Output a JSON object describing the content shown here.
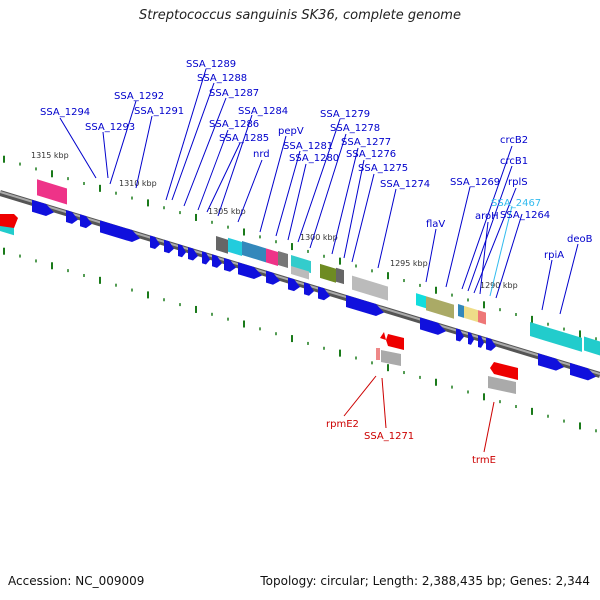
{
  "header": {
    "title": "Streptococcus sanguinis SK36, complete genome"
  },
  "footer": {
    "accession": "Accession: NC_009009",
    "summary": "Topology: circular; Length: 2,388,435 bp; Genes: 2,344"
  },
  "colors": {
    "forward_label": "#0000cc",
    "reverse_label": "#cc0000",
    "highlight_label": "#33bbee",
    "backbone": "#888888",
    "tick": "#1a7a1a",
    "forward_arrow": "#1010dd",
    "reverse_arrow": "#ee0000"
  },
  "ruler": [
    {
      "label": "1315 kbp"
    },
    {
      "label": "1310 kbp"
    },
    {
      "label": "1305 kbp"
    },
    {
      "label": "1300 kbp"
    },
    {
      "label": "1295 kbp"
    },
    {
      "label": "1290 kbp"
    }
  ],
  "forward_genes": [
    {
      "label": "SSA_1294"
    },
    {
      "label": "SSA_1293"
    },
    {
      "label": "SSA_1292"
    },
    {
      "label": "SSA_1291"
    },
    {
      "label": "SSA_1289"
    },
    {
      "label": "SSA_1288"
    },
    {
      "label": "SSA_1287"
    },
    {
      "label": "SSA_1286"
    },
    {
      "label": "SSA_1285"
    },
    {
      "label": "SSA_1284"
    },
    {
      "label": "nrd"
    },
    {
      "label": "pepV"
    },
    {
      "label": "SSA_1281"
    },
    {
      "label": "SSA_1280"
    },
    {
      "label": "SSA_1279"
    },
    {
      "label": "SSA_1278"
    },
    {
      "label": "SSA_1277"
    },
    {
      "label": "SSA_1276"
    },
    {
      "label": "SSA_1275"
    },
    {
      "label": "SSA_1274"
    },
    {
      "label": "flaV"
    },
    {
      "label": "SSA_1269"
    },
    {
      "label": "crcB2"
    },
    {
      "label": "crcB1"
    },
    {
      "label": "rplS"
    },
    {
      "label": "aroH"
    },
    {
      "label": "SSA_2467"
    },
    {
      "label": "SSA_1264"
    },
    {
      "label": "rpiA"
    },
    {
      "label": "deoB"
    }
  ],
  "reverse_genes": [
    {
      "label": "rpmE2"
    },
    {
      "label": "SSA_1271"
    },
    {
      "label": "trmE"
    }
  ]
}
